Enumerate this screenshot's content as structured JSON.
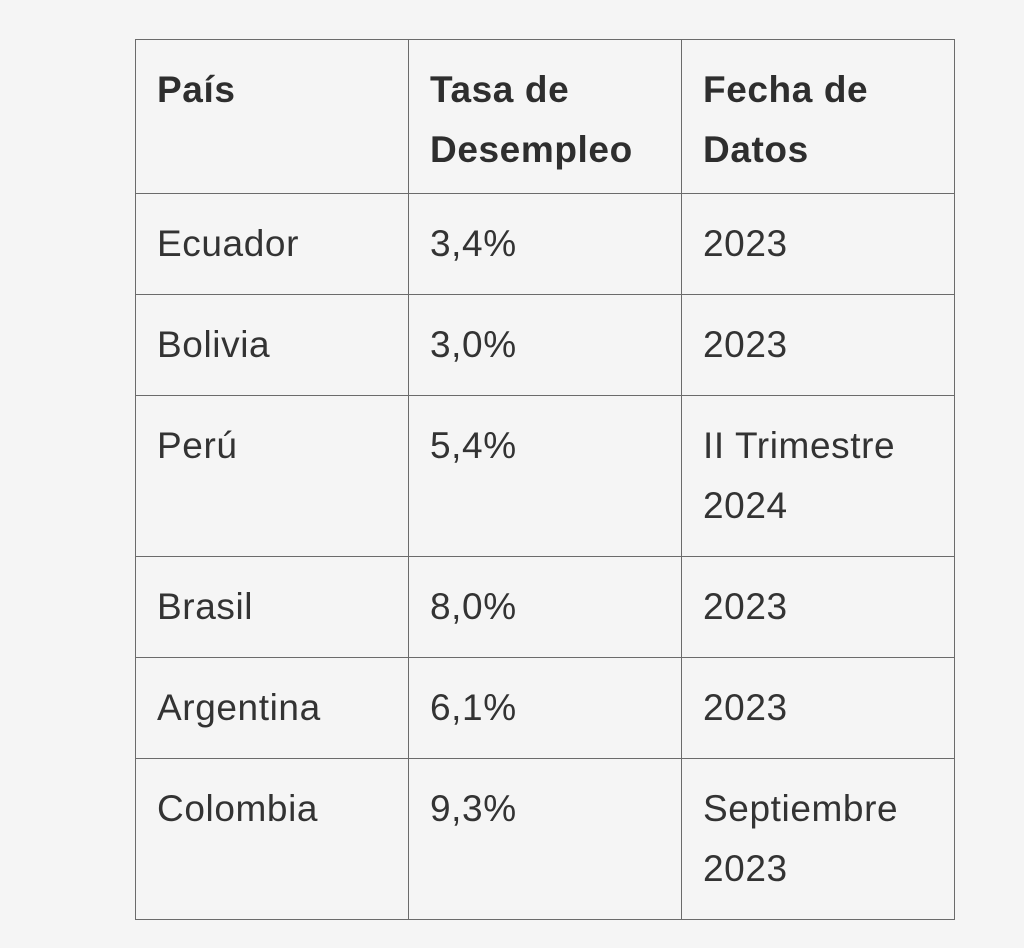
{
  "table": {
    "headers": {
      "country": [
        "País"
      ],
      "rate": [
        "Tasa de",
        "Desempleo"
      ],
      "date": [
        "Fecha de",
        "Datos"
      ]
    },
    "rows": [
      {
        "country": "Ecuador",
        "rate": "3,4%",
        "date": [
          "2023"
        ]
      },
      {
        "country": "Bolivia",
        "rate": "3,0%",
        "date": [
          "2023"
        ]
      },
      {
        "country": "Perú",
        "rate": "5,4%",
        "date": [
          "II Trimestre",
          "2024"
        ]
      },
      {
        "country": "Brasil",
        "rate": "8,0%",
        "date": [
          "2023"
        ]
      },
      {
        "country": "Argentina",
        "rate": "6,1%",
        "date": [
          "2023"
        ]
      },
      {
        "country": "Colombia",
        "rate": "9,3%",
        "date": [
          "Septiembre",
          "2023"
        ]
      }
    ]
  }
}
